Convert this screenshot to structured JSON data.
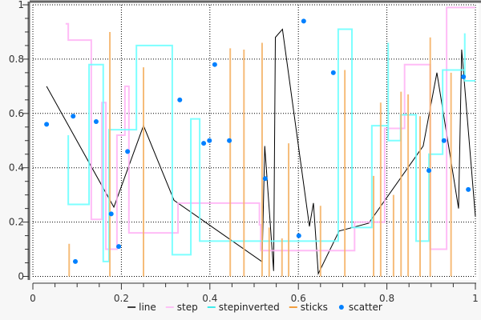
{
  "chart_data": {
    "type": "line",
    "title": "",
    "xlabel": "",
    "ylabel": "",
    "xlim": [
      0,
      1
    ],
    "ylim": [
      0,
      1
    ],
    "grid": true,
    "legend_placement": "bottom",
    "x_ticks": [
      "0",
      "0.2",
      "0.4",
      "0.6",
      "0.8",
      "1"
    ],
    "y_ticks": [
      "0",
      "0.2",
      "0.4",
      "0.6",
      "0.8",
      "1"
    ],
    "series": [
      {
        "name": "line",
        "kind": "line",
        "color": "#000000",
        "points": [
          [
            0.031,
            0.7
          ],
          [
            0.183,
            0.255
          ],
          [
            0.25,
            0.555
          ],
          [
            0.319,
            0.28
          ],
          [
            0.518,
            0.054
          ],
          [
            0.524,
            0.48
          ],
          [
            0.544,
            0.02
          ],
          [
            0.548,
            0.88
          ],
          [
            0.564,
            0.91
          ],
          [
            0.625,
            0.184
          ],
          [
            0.634,
            0.27
          ],
          [
            0.645,
            0.01
          ],
          [
            0.692,
            0.167
          ],
          [
            0.759,
            0.196
          ],
          [
            0.882,
            0.48
          ],
          [
            0.913,
            0.75
          ],
          [
            0.962,
            0.25
          ],
          [
            0.969,
            0.835
          ],
          [
            1.0,
            0.22
          ]
        ]
      },
      {
        "name": "step",
        "kind": "step",
        "color": "#ffb0f5",
        "points": [
          [
            0.074,
            0.93
          ],
          [
            0.08,
            0.87
          ],
          [
            0.132,
            0.21
          ],
          [
            0.156,
            0.64
          ],
          [
            0.165,
            0.1
          ],
          [
            0.19,
            0.52
          ],
          [
            0.208,
            0.7
          ],
          [
            0.217,
            0.16
          ],
          [
            0.328,
            0.27
          ],
          [
            0.512,
            0.19
          ],
          [
            0.515,
            0.095
          ],
          [
            0.727,
            0.2
          ],
          [
            0.795,
            0.545
          ],
          [
            0.84,
            0.78
          ],
          [
            0.898,
            0.1
          ],
          [
            0.935,
            0.99
          ],
          [
            1.0,
            0.99
          ]
        ]
      },
      {
        "name": "stepinverted",
        "kind": "step",
        "color": "#66ffff",
        "points": [
          [
            0.08,
            0.52
          ],
          [
            0.08,
            0.265
          ],
          [
            0.127,
            0.78
          ],
          [
            0.159,
            0.055
          ],
          [
            0.172,
            0.54
          ],
          [
            0.234,
            0.85
          ],
          [
            0.315,
            0.08
          ],
          [
            0.357,
            0.58
          ],
          [
            0.377,
            0.13
          ],
          [
            0.69,
            0.91
          ],
          [
            0.721,
            0.18
          ],
          [
            0.766,
            0.555
          ],
          [
            0.803,
            0.86
          ],
          [
            0.803,
            0.5
          ],
          [
            0.831,
            0.595
          ],
          [
            0.866,
            0.13
          ],
          [
            0.895,
            0.45
          ],
          [
            0.926,
            0.76
          ],
          [
            0.976,
            0.895
          ],
          [
            0.976,
            0.72
          ],
          [
            1.0,
            0.72
          ]
        ]
      },
      {
        "name": "sticks",
        "kind": "sticks",
        "color": "#f5b56a",
        "legend_color": "#f08000",
        "points": [
          [
            0.082,
            0.12
          ],
          [
            0.174,
            0.9
          ],
          [
            0.25,
            0.77
          ],
          [
            0.446,
            0.84
          ],
          [
            0.477,
            0.835
          ],
          [
            0.518,
            0.86
          ],
          [
            0.534,
            0.18
          ],
          [
            0.563,
            0.14
          ],
          [
            0.578,
            0.49
          ],
          [
            0.65,
            0.26
          ],
          [
            0.705,
            0.76
          ],
          [
            0.77,
            0.37
          ],
          [
            0.786,
            0.64
          ],
          [
            0.815,
            0.3
          ],
          [
            0.832,
            0.68
          ],
          [
            0.848,
            0.67
          ],
          [
            0.875,
            0.59
          ],
          [
            0.898,
            0.88
          ],
          [
            0.945,
            0.75
          ]
        ]
      },
      {
        "name": "scatter",
        "kind": "scatter",
        "color": "#0080ff",
        "points": [
          [
            0.031,
            0.56
          ],
          [
            0.096,
            0.055
          ],
          [
            0.091,
            0.59
          ],
          [
            0.143,
            0.57
          ],
          [
            0.177,
            0.23
          ],
          [
            0.194,
            0.11
          ],
          [
            0.214,
            0.46
          ],
          [
            0.332,
            0.65
          ],
          [
            0.386,
            0.49
          ],
          [
            0.399,
            0.5
          ],
          [
            0.411,
            0.78
          ],
          [
            0.444,
            0.5
          ],
          [
            0.525,
            0.36
          ],
          [
            0.601,
            0.15
          ],
          [
            0.612,
            0.94
          ],
          [
            0.679,
            0.75
          ],
          [
            0.895,
            0.39
          ],
          [
            0.929,
            0.5
          ],
          [
            0.973,
            0.735
          ],
          [
            0.984,
            0.32
          ]
        ]
      }
    ]
  }
}
